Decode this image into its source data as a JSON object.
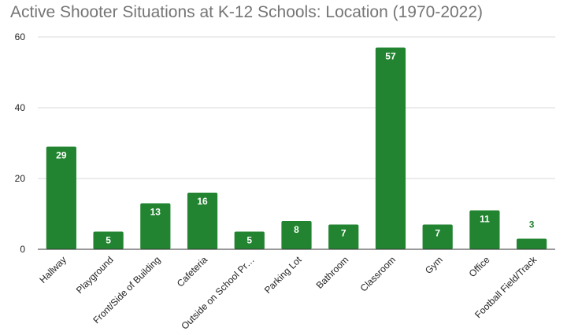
{
  "chart_data": {
    "type": "bar",
    "title": "Active Shooter Situations at K-12 Schools: Location (1970-2022)",
    "xlabel": "",
    "ylabel": "",
    "ylim": [
      0,
      60
    ],
    "yticks": [
      0,
      20,
      40,
      60
    ],
    "grid": true,
    "legend": "none",
    "categories": [
      "Hallway",
      "Playground",
      "Front/Side of Building",
      "Cafeteria",
      "Outside on School Pr…",
      "Parking Lot",
      "Bathroom",
      "Classroom",
      "Gym",
      "Office",
      "Football Field/Track"
    ],
    "values": [
      29,
      5,
      13,
      16,
      5,
      8,
      7,
      57,
      7,
      11,
      3
    ],
    "colors": {
      "bar": "#228431",
      "label_inside": "#ffffff",
      "label_outside": "#228431",
      "grid": "#d9d9d9",
      "baseline": "#333333"
    }
  }
}
